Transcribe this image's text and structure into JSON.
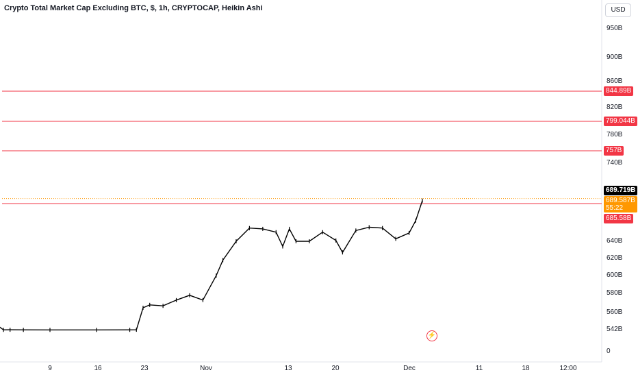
{
  "header": {
    "title": "Crypto Total Market Cap Excluding BTC, $, 1h, CRYPTOCAP, Heikin Ashi",
    "currency": "USD"
  },
  "price_labels": [
    "950B",
    "900B",
    "860B",
    "820B",
    "780B",
    "740B",
    "640B",
    "620B",
    "600B",
    "580B",
    "560B",
    "542B",
    "0"
  ],
  "time_labels": [
    "9",
    "16",
    "23",
    "Nov",
    "13",
    "20",
    "Dec",
    "11",
    "18",
    "12:00"
  ],
  "tags": {
    "last_price": "689.719B",
    "current": "689.587B",
    "countdown": "55:22",
    "levels": [
      "844.89B",
      "799.044B",
      "757B",
      "685.58B"
    ]
  },
  "icons": {
    "alert": "lightning-bolt-icon"
  },
  "colors": {
    "level_line": "#f23645",
    "price_line": "#ff9800",
    "candle": "#000000"
  },
  "chart_data": {
    "type": "line",
    "style": "Heikin Ashi",
    "interval": "1h",
    "title": "Crypto Total Market Cap Excluding BTC, $, 1h, CRYPTOCAP, Heikin Ashi",
    "x_ticks": [
      "9",
      "16",
      "23",
      "Nov",
      "13",
      "20",
      "Dec",
      "11",
      "18",
      "12:00"
    ],
    "y_ticks": [
      "950B",
      "900B",
      "860B",
      "820B",
      "780B",
      "740B",
      "640B",
      "620B",
      "600B",
      "580B",
      "560B",
      "542B",
      "0"
    ],
    "series": [
      {
        "x": [
          "Oct 1",
          "Oct 2",
          "Oct 3",
          "Oct 5",
          "Oct 9",
          "Oct 16",
          "Oct 21",
          "Oct 22",
          "Oct 23",
          "Oct 24",
          "Oct 26",
          "Oct 28",
          "Oct 30",
          "Nov 1",
          "Nov 3",
          "Nov 4",
          "Nov 6",
          "Nov 8",
          "Nov 10",
          "Nov 12",
          "Nov 13",
          "Nov 14",
          "Nov 15",
          "Nov 17",
          "Nov 19",
          "Nov 21",
          "Nov 22",
          "Nov 24",
          "Nov 26",
          "Nov 28",
          "Nov 30",
          "Dec 2",
          "Dec 3",
          "Dec 4"
        ],
        "values": [
          547,
          538,
          540,
          538,
          537,
          537,
          538,
          541,
          565,
          568,
          567,
          573,
          578,
          573,
          600,
          618,
          640,
          656,
          655,
          651,
          634,
          655,
          640,
          640,
          651,
          641,
          627,
          653,
          657,
          656,
          643,
          650,
          665,
          689.6
        ]
      }
    ],
    "horizontal_levels": [
      844.89,
      799.044,
      757,
      685.58
    ],
    "last_price": 689.719,
    "current_price": 689.587,
    "grid": false,
    "legend": "none"
  }
}
